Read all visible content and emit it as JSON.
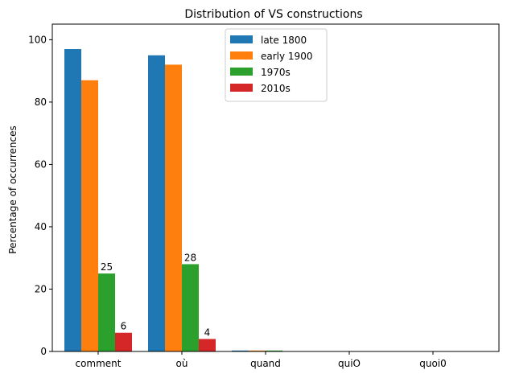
{
  "chart_data": {
    "type": "bar",
    "title": "Distribution of VS constructions",
    "xlabel": "",
    "ylabel": "Percentage of occurrences",
    "categories": [
      "comment",
      "où",
      "quand",
      "quiO",
      "quoi0"
    ],
    "series": [
      {
        "name": "late 1800",
        "color": "#1f77b4",
        "values": [
          97,
          95,
          0.3,
          0,
          0
        ]
      },
      {
        "name": "early 1900",
        "color": "#ff7f0e",
        "values": [
          87,
          92,
          0.3,
          0,
          0
        ]
      },
      {
        "name": "1970s",
        "color": "#2ca02c",
        "values": [
          25,
          28,
          0.3,
          0,
          0
        ]
      },
      {
        "name": "2010s",
        "color": "#d62728",
        "values": [
          6,
          4,
          0,
          0,
          0
        ]
      }
    ],
    "data_labels": [
      {
        "series": 2,
        "category": 0,
        "text": "25"
      },
      {
        "series": 3,
        "category": 0,
        "text": "6"
      },
      {
        "series": 2,
        "category": 1,
        "text": "28"
      },
      {
        "series": 3,
        "category": 1,
        "text": "4"
      }
    ],
    "y_ticks": [
      0,
      20,
      40,
      60,
      80,
      100
    ],
    "ylim": [
      0,
      105
    ],
    "grid": false,
    "legend_position": "top-center"
  }
}
